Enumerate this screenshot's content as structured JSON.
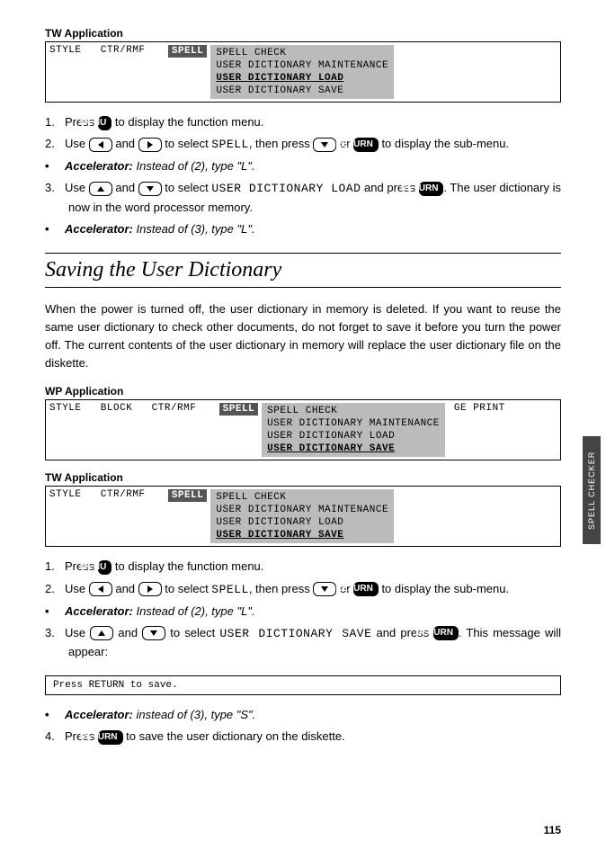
{
  "tw1": {
    "label": "TW Application",
    "left": "STYLE   CTR/RMF   ",
    "spell": "SPELL",
    "sub": [
      "SPELL CHECK",
      "USER DICTIONARY MAINTENANCE",
      "USER DICTIONARY LOAD",
      "USER DICTIONARY SAVE"
    ],
    "sel_index": 2
  },
  "steps1": [
    {
      "type": "num",
      "n": "1",
      "before": "Press ",
      "key": "MENU",
      "after": " to display the function menu."
    },
    {
      "type": "num",
      "n": "2",
      "html": "Use {LEFT} and {RIGHT} to select {SPELL}, then press {DOWN} or {RETURN} to display the sub-menu.",
      "spell": "SPELL"
    },
    {
      "type": "bul",
      "accel": "Accelerator:",
      "ital": " Instead of (2), type \"L\"."
    },
    {
      "type": "num",
      "n": "3",
      "html": "Use {UP} and {DOWN} to select {USERDICT} and press {RETURNK}. The user dictionary is now in the word processor memory.",
      "userdict": "USER DICTIONARY LOAD"
    },
    {
      "type": "bul",
      "accel": "Accelerator:",
      "ital": " Instead of (3), type \"L\"."
    }
  ],
  "section": "Saving the User Dictionary",
  "para": "When the power is turned off, the user dictionary in memory is deleted. If you want to reuse the same user dictionary to check other documents, do not forget to save it before you turn the power off. The current contents of the user dictionary in memory will replace the user dictionary file on the diskette.",
  "wp2": {
    "label": "WP Application",
    "left": "STYLE   BLOCK   CTR/RMF   ",
    "spell": "SPELL",
    "sub": [
      "SPELL CHECK",
      "USER DICTIONARY MAINTENANCE",
      "USER DICTIONARY LOAD",
      "USER DICTIONARY SAVE"
    ],
    "sel_index": 3,
    "right": "GE PRINT"
  },
  "tw2": {
    "label": "TW Application",
    "left": "STYLE   CTR/RMF   ",
    "spell": "SPELL",
    "sub": [
      "SPELL CHECK",
      "USER DICTIONARY MAINTENANCE",
      "USER DICTIONARY LOAD",
      "USER DICTIONARY SAVE"
    ],
    "sel_index": 3
  },
  "steps2": [
    {
      "type": "num",
      "n": "1",
      "before": "Press ",
      "key": "MENU",
      "after": " to display the function menu."
    },
    {
      "type": "num",
      "n": "2",
      "html": "Use {LEFT} and {RIGHT} to select {SPELL}, then press {DOWN} or {RETURN} to display the sub-menu.",
      "spell": "SPELL"
    },
    {
      "type": "bul",
      "accel": "Accelerator:",
      "ital": " Instead of (2), type \"L\"."
    },
    {
      "type": "num",
      "n": "3",
      "html": "Use {UP} and {DOWN} to select {USERDICT} and press {RETURNK}. This message will appear:",
      "userdict": "USER DICTIONARY SAVE"
    }
  ],
  "msg": "Press RETURN to save.",
  "steps3": [
    {
      "type": "bul",
      "accel": "Accelerator:",
      "ital": " instead of (3), type \"S\"."
    },
    {
      "type": "num",
      "n": "4",
      "before": "Press ",
      "key": "RETURN",
      "after": " to save the user dictionary on the diskette."
    }
  ],
  "sidetab": "SPELL CHECKER",
  "pagenum": "115",
  "keys": {
    "MENU": "MENU",
    "RETURN": "RETURN"
  }
}
